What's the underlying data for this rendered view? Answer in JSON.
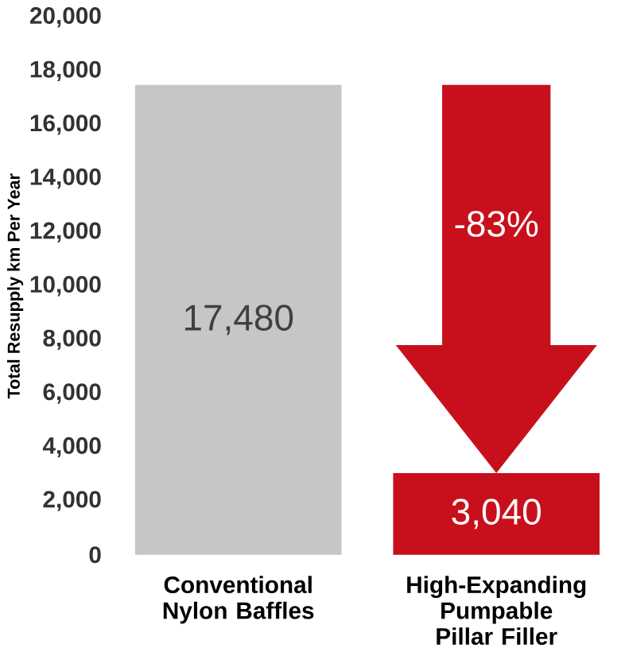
{
  "chart_data": {
    "type": "bar",
    "ylabel": "Total Resupply km Per Year",
    "categories": [
      "Conventional Nylon Baffles",
      "High-Expanding Pumpable Pillar Filler"
    ],
    "values": [
      17480,
      3040
    ],
    "colors": [
      "#c4c6c8",
      "#c8101c"
    ],
    "value_labels": [
      "17,480",
      "3,040"
    ],
    "ylim": [
      0,
      20000
    ],
    "yticks": [
      {
        "value": 0,
        "label": "0"
      },
      {
        "value": 2000,
        "label": "2,000"
      },
      {
        "value": 4000,
        "label": "4,000"
      },
      {
        "value": 6000,
        "label": "6,000"
      },
      {
        "value": 8000,
        "label": "8,000"
      },
      {
        "value": 10000,
        "label": "10,000"
      },
      {
        "value": 12000,
        "label": "12,000"
      },
      {
        "value": 14000,
        "label": "14,000"
      },
      {
        "value": 16000,
        "label": "16,000"
      },
      {
        "value": 18000,
        "label": "18,000"
      },
      {
        "value": 20000,
        "label": "20,000"
      }
    ],
    "annotations": [
      "-83%"
    ],
    "grid": false
  }
}
